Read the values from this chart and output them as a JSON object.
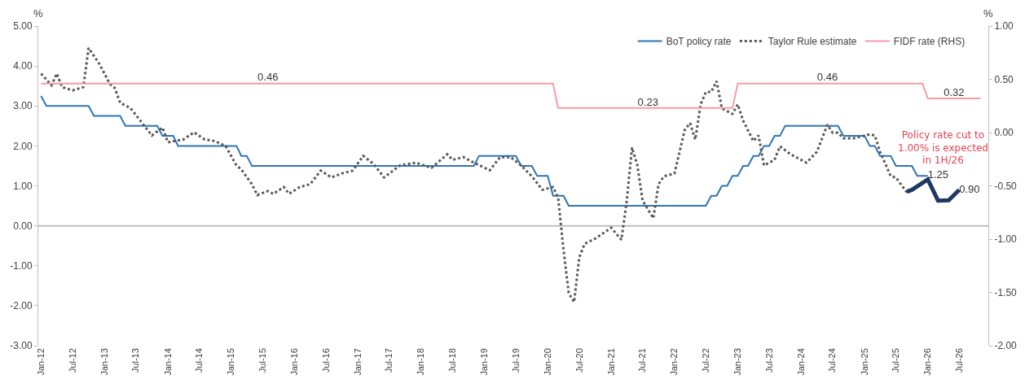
{
  "chart_data": {
    "type": "line",
    "ylabel": "%",
    "y2label": "%",
    "xlim": [
      "2011-12-16",
      "2026-12-16"
    ],
    "xticks": [
      {
        "value": "2012-01",
        "label": "Jan-12"
      },
      {
        "value": "2012-07",
        "label": "Jul-12"
      },
      {
        "value": "2013-01",
        "label": "Jan-13"
      },
      {
        "value": "2013-07",
        "label": "Jul-13"
      },
      {
        "value": "2014-01",
        "label": "Jan-14"
      },
      {
        "value": "2014-07",
        "label": "Jul-14"
      },
      {
        "value": "2015-01",
        "label": "Jan-15"
      },
      {
        "value": "2015-07",
        "label": "Jul-15"
      },
      {
        "value": "2016-01",
        "label": "Jan-16"
      },
      {
        "value": "2016-07",
        "label": "Jul-16"
      },
      {
        "value": "2017-01",
        "label": "Jan-17"
      },
      {
        "value": "2017-07",
        "label": "Jul-17"
      },
      {
        "value": "2018-01",
        "label": "Jan-18"
      },
      {
        "value": "2018-07",
        "label": "Jul-18"
      },
      {
        "value": "2019-01",
        "label": "Jan-19"
      },
      {
        "value": "2019-07",
        "label": "Jul-19"
      },
      {
        "value": "2020-01",
        "label": "Jan-20"
      },
      {
        "value": "2020-07",
        "label": "Jul-20"
      },
      {
        "value": "2021-01",
        "label": "Jan-21"
      },
      {
        "value": "2021-07",
        "label": "Jul-21"
      },
      {
        "value": "2022-01",
        "label": "Jan-22"
      },
      {
        "value": "2022-07",
        "label": "Jul-22"
      },
      {
        "value": "2023-01",
        "label": "Jan-23"
      },
      {
        "value": "2023-07",
        "label": "Jul-23"
      },
      {
        "value": "2024-01",
        "label": "Jan-24"
      },
      {
        "value": "2024-07",
        "label": "Jul-24"
      },
      {
        "value": "2025-01",
        "label": "Jan-25"
      },
      {
        "value": "2025-07",
        "label": "Jul-25"
      },
      {
        "value": "2026-01",
        "label": "Jan-26"
      },
      {
        "value": "2026-07",
        "label": "Jul-26"
      }
    ],
    "ylim": [
      -3,
      5
    ],
    "yticks": [
      {
        "value": -3,
        "label": "-3.00"
      },
      {
        "value": -2,
        "label": "-2.00"
      },
      {
        "value": -1,
        "label": "-1.00"
      },
      {
        "value": 0,
        "label": "0.00"
      },
      {
        "value": 1,
        "label": "1.00"
      },
      {
        "value": 2,
        "label": "2.00"
      },
      {
        "value": 3,
        "label": "3.00"
      },
      {
        "value": 4,
        "label": "4.00"
      },
      {
        "value": 5,
        "label": "5.00"
      }
    ],
    "y2lim": [
      -2,
      1
    ],
    "y2ticks": [
      {
        "value": -2,
        "label": "-2.00"
      },
      {
        "value": -1.5,
        "label": "-1.50"
      },
      {
        "value": -1,
        "label": "-1.00"
      },
      {
        "value": -0.5,
        "label": "-0.50"
      },
      {
        "value": 0,
        "label": "0.00"
      },
      {
        "value": 0.5,
        "label": "0.50"
      },
      {
        "value": 1,
        "label": "1.00"
      }
    ],
    "grid": false,
    "legend": "top right",
    "marker": "none",
    "ref_lines": [
      {
        "axis": "y",
        "value": 0,
        "color": "#bfbfbf"
      }
    ],
    "annotations": [
      "Policy rate cut to\n1.00% is expected\nin 1H/26"
    ],
    "series": [
      {
        "name": "BoT policy rate",
        "color": "#2e75b6",
        "line_style": "solid",
        "x": [
          "2012-01",
          "2012-02",
          "2012-10",
          "2012-11",
          "2013-04",
          "2013-05",
          "2013-11",
          "2013-12",
          "2014-02",
          "2014-03",
          "2015-02",
          "2015-03",
          "2015-04",
          "2015-05",
          "2018-11",
          "2018-12",
          "2019-07",
          "2019-08",
          "2019-10",
          "2019-11",
          "2020-01",
          "2020-02",
          "2020-04",
          "2020-05",
          "2022-07",
          "2022-08",
          "2022-09",
          "2022-10",
          "2022-11",
          "2022-12",
          "2023-01",
          "2023-02",
          "2023-03",
          "2023-04",
          "2023-05",
          "2023-06",
          "2023-07",
          "2023-08",
          "2023-09",
          "2023-10",
          "2024-08",
          "2024-09",
          "2025-01",
          "2025-02",
          "2025-03",
          "2025-04",
          "2025-06",
          "2025-07",
          "2025-10",
          "2025-11",
          "2026-01"
        ],
        "values": [
          3.25,
          3.0,
          3.0,
          2.75,
          2.75,
          2.5,
          2.5,
          2.25,
          2.25,
          2.0,
          2.0,
          1.75,
          1.75,
          1.5,
          1.5,
          1.75,
          1.75,
          1.5,
          1.5,
          1.25,
          1.25,
          0.75,
          0.75,
          0.5,
          0.5,
          0.75,
          0.75,
          1.0,
          1.0,
          1.25,
          1.25,
          1.5,
          1.5,
          1.75,
          1.75,
          2.0,
          2.0,
          2.25,
          2.25,
          2.5,
          2.5,
          2.25,
          2.25,
          2.0,
          2.0,
          1.75,
          1.75,
          1.5,
          1.5,
          1.25,
          1.25
        ],
        "value_labels": [
          null,
          null,
          null,
          null,
          null,
          null,
          null,
          null,
          null,
          null,
          null,
          null,
          null,
          null,
          null,
          null,
          null,
          null,
          null,
          null,
          null,
          null,
          null,
          null,
          null,
          null,
          null,
          null,
          null,
          null,
          null,
          null,
          null,
          null,
          null,
          null,
          null,
          null,
          null,
          null,
          null,
          null,
          null,
          null,
          null,
          null,
          null,
          null,
          null,
          null,
          "1.25"
        ]
      },
      {
        "name": "Taylor Rule estimate",
        "color": "#595959",
        "line_style": "dotted",
        "x": [
          "2012-01",
          "2012-03",
          "2012-04",
          "2012-05",
          "2012-07",
          "2012-09",
          "2012-10",
          "2012-12",
          "2013-02",
          "2013-03",
          "2013-04",
          "2013-06",
          "2013-08",
          "2013-10",
          "2013-12",
          "2014-01",
          "2014-04",
          "2014-06",
          "2014-08",
          "2014-10",
          "2014-12",
          "2015-02",
          "2015-03",
          "2015-05",
          "2015-06",
          "2015-08",
          "2015-09",
          "2015-11",
          "2015-12",
          "2016-02",
          "2016-04",
          "2016-06",
          "2016-08",
          "2016-10",
          "2016-12",
          "2017-02",
          "2017-04",
          "2017-06",
          "2017-09",
          "2017-12",
          "2018-03",
          "2018-06",
          "2018-07",
          "2018-09",
          "2018-11",
          "2019-02",
          "2019-04",
          "2019-06",
          "2019-08",
          "2019-10",
          "2019-12",
          "2020-02",
          "2020-03",
          "2020-04",
          "2020-05",
          "2020-06",
          "2020-07",
          "2020-08",
          "2020-10",
          "2021-01",
          "2021-03",
          "2021-04",
          "2021-05",
          "2021-06",
          "2021-07",
          "2021-09",
          "2021-10",
          "2021-11",
          "2022-01",
          "2022-03",
          "2022-04",
          "2022-05",
          "2022-06",
          "2022-07",
          "2022-08",
          "2022-09",
          "2022-10",
          "2022-12",
          "2023-01",
          "2023-02",
          "2023-04",
          "2023-05",
          "2023-06",
          "2023-08",
          "2023-09",
          "2023-11",
          "2024-02",
          "2024-04",
          "2024-06",
          "2024-07",
          "2024-08",
          "2024-09",
          "2024-11",
          "2025-02",
          "2025-03",
          "2025-04",
          "2025-06",
          "2025-07",
          "2025-09"
        ],
        "values": [
          3.81,
          3.52,
          3.81,
          3.47,
          3.39,
          3.47,
          4.45,
          4.06,
          3.55,
          3.45,
          3.08,
          2.94,
          2.6,
          2.26,
          2.46,
          2.09,
          2.16,
          2.34,
          2.16,
          2.12,
          1.99,
          1.51,
          1.41,
          1.04,
          0.77,
          0.87,
          0.8,
          0.97,
          0.8,
          0.97,
          1.04,
          1.38,
          1.21,
          1.31,
          1.38,
          1.75,
          1.55,
          1.21,
          1.51,
          1.58,
          1.45,
          1.79,
          1.65,
          1.72,
          1.58,
          1.39,
          1.72,
          1.72,
          1.51,
          1.24,
          0.9,
          0.97,
          0.7,
          -0.6,
          -1.68,
          -1.91,
          -0.79,
          -0.45,
          -0.32,
          -0.05,
          -0.35,
          0.63,
          1.96,
          1.51,
          0.63,
          0.19,
          1.04,
          1.24,
          1.31,
          2.4,
          2.57,
          2.16,
          3.04,
          3.35,
          3.35,
          3.62,
          2.94,
          2.8,
          3.04,
          2.63,
          2.12,
          2.26,
          1.51,
          1.65,
          1.99,
          1.79,
          1.58,
          1.85,
          2.53,
          2.33,
          2.33,
          2.19,
          2.19,
          2.29,
          2.26,
          1.85,
          1.24,
          1.21,
          0.84
        ]
      },
      {
        "name": "FIDF rate (RHS)",
        "color": "#f59ca3",
        "axis": "y2",
        "line_style": "solid",
        "x": [
          "2012-01",
          "2015-08",
          "2020-02",
          "2020-03",
          "2021-08",
          "2022-12",
          "2023-01",
          "2024-06",
          "2025-12",
          "2026-01",
          "2026-06",
          "2026-11"
        ],
        "values": [
          0.46,
          0.46,
          0.46,
          0.23,
          0.23,
          0.23,
          0.46,
          0.46,
          0.46,
          0.32,
          0.32,
          0.32
        ],
        "value_labels": [
          null,
          "0.46",
          null,
          null,
          "0.23",
          null,
          null,
          "0.46",
          null,
          null,
          "0.32",
          null
        ]
      },
      {
        "color": "#1f3864",
        "line_style": "solid",
        "x": [
          "2025-09",
          "2025-10",
          "2026-01",
          "2026-03",
          "2026-05",
          "2026-07"
        ],
        "values": [
          0.85,
          0.9,
          1.16,
          0.63,
          0.64,
          0.9
        ],
        "value_labels": [
          null,
          null,
          null,
          null,
          null,
          "0.90"
        ]
      }
    ]
  }
}
